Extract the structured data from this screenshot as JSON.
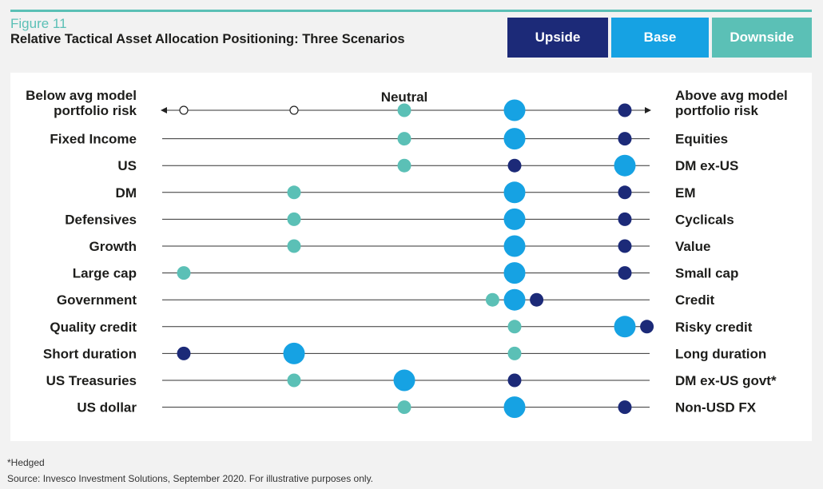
{
  "figure_label": "Figure 11",
  "title": "Relative Tactical Asset Allocation Positioning: Three Scenarios",
  "legend": [
    {
      "label": "Upside",
      "color": "#1c2a78"
    },
    {
      "label": "Base",
      "color": "#16a2e3"
    },
    {
      "label": "Downside",
      "color": "#5bc0b6"
    }
  ],
  "footnote": "*Hedged",
  "source": "Source: Invesco Investment Solutions, September 2020. For illustrative purposes only.",
  "chart_data": {
    "type": "scatter",
    "title": "Relative Tactical Asset Allocation Positioning: Three Scenarios",
    "x_scale": {
      "min": -3,
      "max": 2,
      "center_label": "Neutral"
    },
    "header_left": [
      "Below avg model",
      "portfolio risk"
    ],
    "header_right": [
      "Above avg model",
      "portfolio risk"
    ],
    "risk_scale_markers": [
      -3,
      -2
    ],
    "rows": [
      {
        "left": [
          "Below avg model",
          "portfolio risk"
        ],
        "right": [
          "Above avg model",
          "portfolio risk"
        ],
        "header": true,
        "downside": -1,
        "base": 0,
        "upside": 1
      },
      {
        "left": "Fixed Income",
        "right": "Equities",
        "downside": -1,
        "base": 0,
        "upside": 1
      },
      {
        "left": "US",
        "right": "DM ex-US",
        "downside": -1,
        "base": 1,
        "upside": 0
      },
      {
        "left": "DM",
        "right": "EM",
        "downside": -2,
        "base": 0,
        "upside": 1
      },
      {
        "left": "Defensives",
        "right": "Cyclicals",
        "downside": -2,
        "base": 0,
        "upside": 1
      },
      {
        "left": "Growth",
        "right": "Value",
        "downside": -2,
        "base": 0,
        "upside": 1
      },
      {
        "left": "Large cap",
        "right": "Small cap",
        "downside": -3,
        "base": 0,
        "upside": 1
      },
      {
        "left": "Government",
        "right": "Credit",
        "downside": -0.2,
        "base": 0,
        "upside": 0.2
      },
      {
        "left": "Quality credit",
        "right": "Risky credit",
        "downside": 0,
        "base": 1,
        "upside": 1.2
      },
      {
        "left": "Short duration",
        "right": "Long duration",
        "downside": 0,
        "base": -2,
        "upside": -3
      },
      {
        "left": "US Treasuries",
        "right": "DM ex-US govt*",
        "downside": -2,
        "base": -1,
        "upside": 0
      },
      {
        "left": "US dollar",
        "right": "Non-USD FX",
        "downside": -1,
        "base": 0,
        "upside": 1
      }
    ]
  }
}
